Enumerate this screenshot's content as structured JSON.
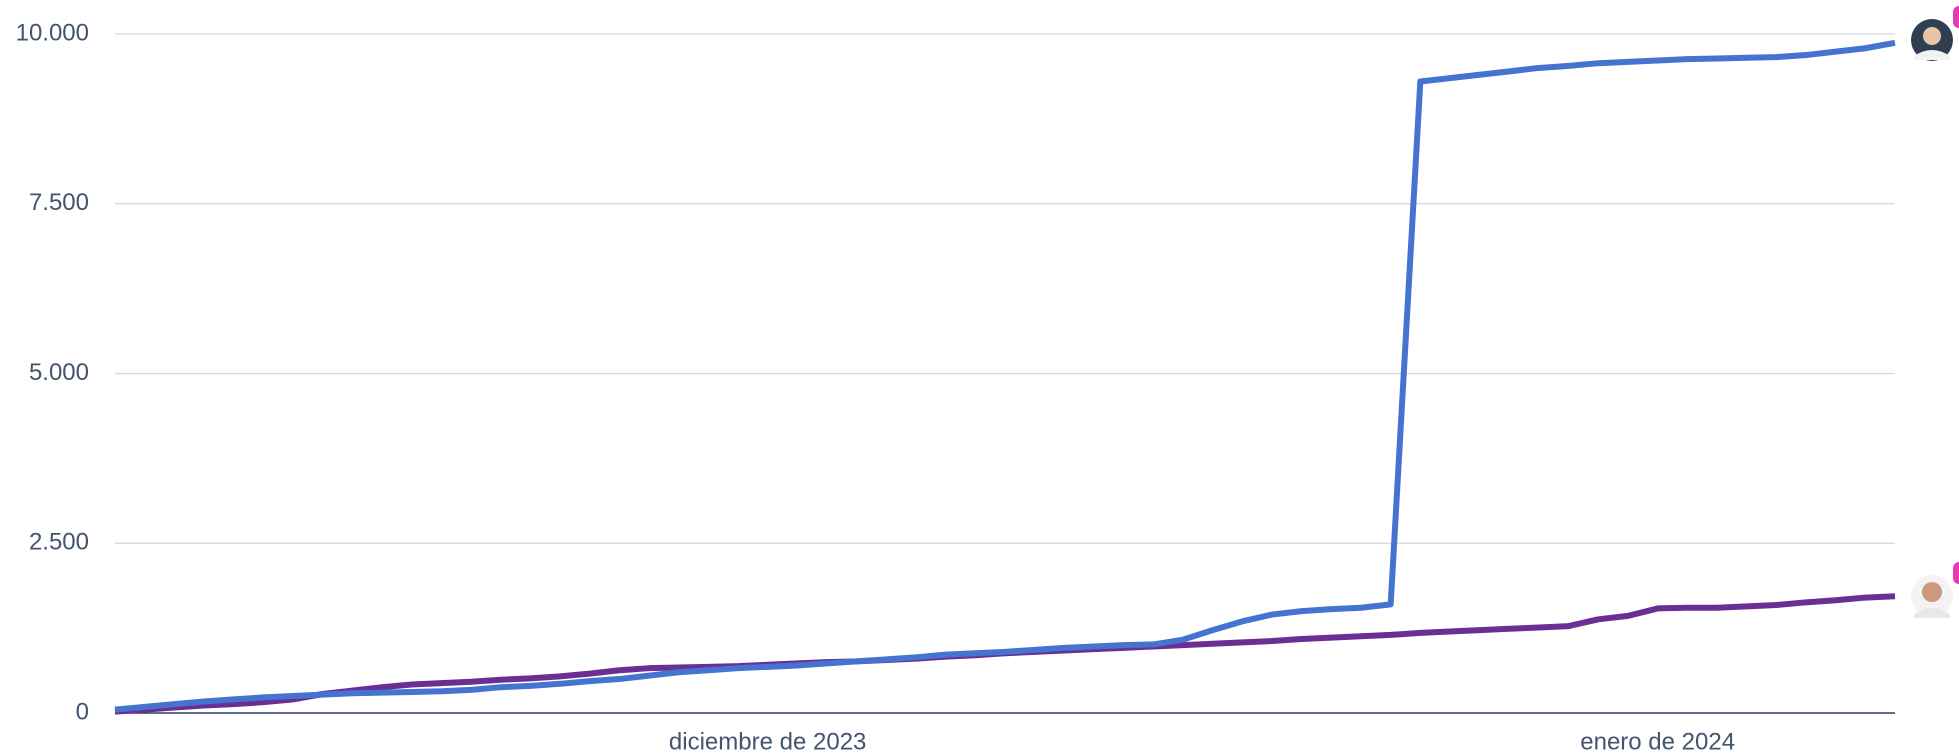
{
  "chart_data": {
    "type": "line",
    "categories": [
      null,
      null,
      null,
      null,
      null,
      null,
      null,
      null,
      null,
      null,
      null,
      null,
      null,
      null,
      null,
      null,
      null,
      null,
      null,
      null,
      null,
      null,
      "diciembre de 2023",
      null,
      null,
      null,
      null,
      null,
      null,
      null,
      null,
      null,
      null,
      null,
      null,
      null,
      null,
      null,
      null,
      null,
      null,
      null,
      null,
      null,
      null,
      null,
      null,
      null,
      null,
      null,
      null,
      null,
      "enero de 2024",
      null,
      null,
      null,
      null,
      null,
      null,
      null,
      null
    ],
    "series": [
      {
        "color": "#4473d0",
        "values": [
          50,
          90,
          130,
          170,
          200,
          230,
          250,
          270,
          290,
          300,
          310,
          320,
          340,
          380,
          400,
          430,
          470,
          500,
          550,
          600,
          630,
          660,
          680,
          700,
          730,
          760,
          790,
          820,
          860,
          880,
          900,
          930,
          960,
          980,
          1000,
          1010,
          1080,
          1220,
          1350,
          1450,
          1500,
          1530,
          1550,
          1600,
          9300,
          9350,
          9400,
          9450,
          9500,
          9530,
          9570,
          9590,
          9610,
          9630,
          9640,
          9650,
          9660,
          9690,
          9740,
          9790,
          9870
        ]
      },
      {
        "color": "#6b2e92",
        "values": [
          20,
          50,
          80,
          110,
          130,
          160,
          200,
          280,
          330,
          380,
          420,
          440,
          460,
          490,
          510,
          540,
          580,
          630,
          660,
          670,
          680,
          690,
          710,
          730,
          750,
          760,
          780,
          800,
          830,
          850,
          880,
          900,
          920,
          940,
          960,
          980,
          1000,
          1020,
          1040,
          1060,
          1090,
          1110,
          1130,
          1150,
          1180,
          1200,
          1220,
          1240,
          1260,
          1280,
          1380,
          1430,
          1540,
          1550,
          1550,
          1570,
          1590,
          1630,
          1660,
          1700,
          1720
        ]
      }
    ],
    "ylim": [
      0,
      10000
    ],
    "yticks": [
      0,
      {
        "value": 2500,
        "label": "2.500"
      },
      {
        "value": 5000,
        "label": "5.000"
      },
      {
        "value": 7500,
        "label": "7.500"
      },
      {
        "value": 10000,
        "label": "10.000"
      }
    ],
    "grid": true
  }
}
